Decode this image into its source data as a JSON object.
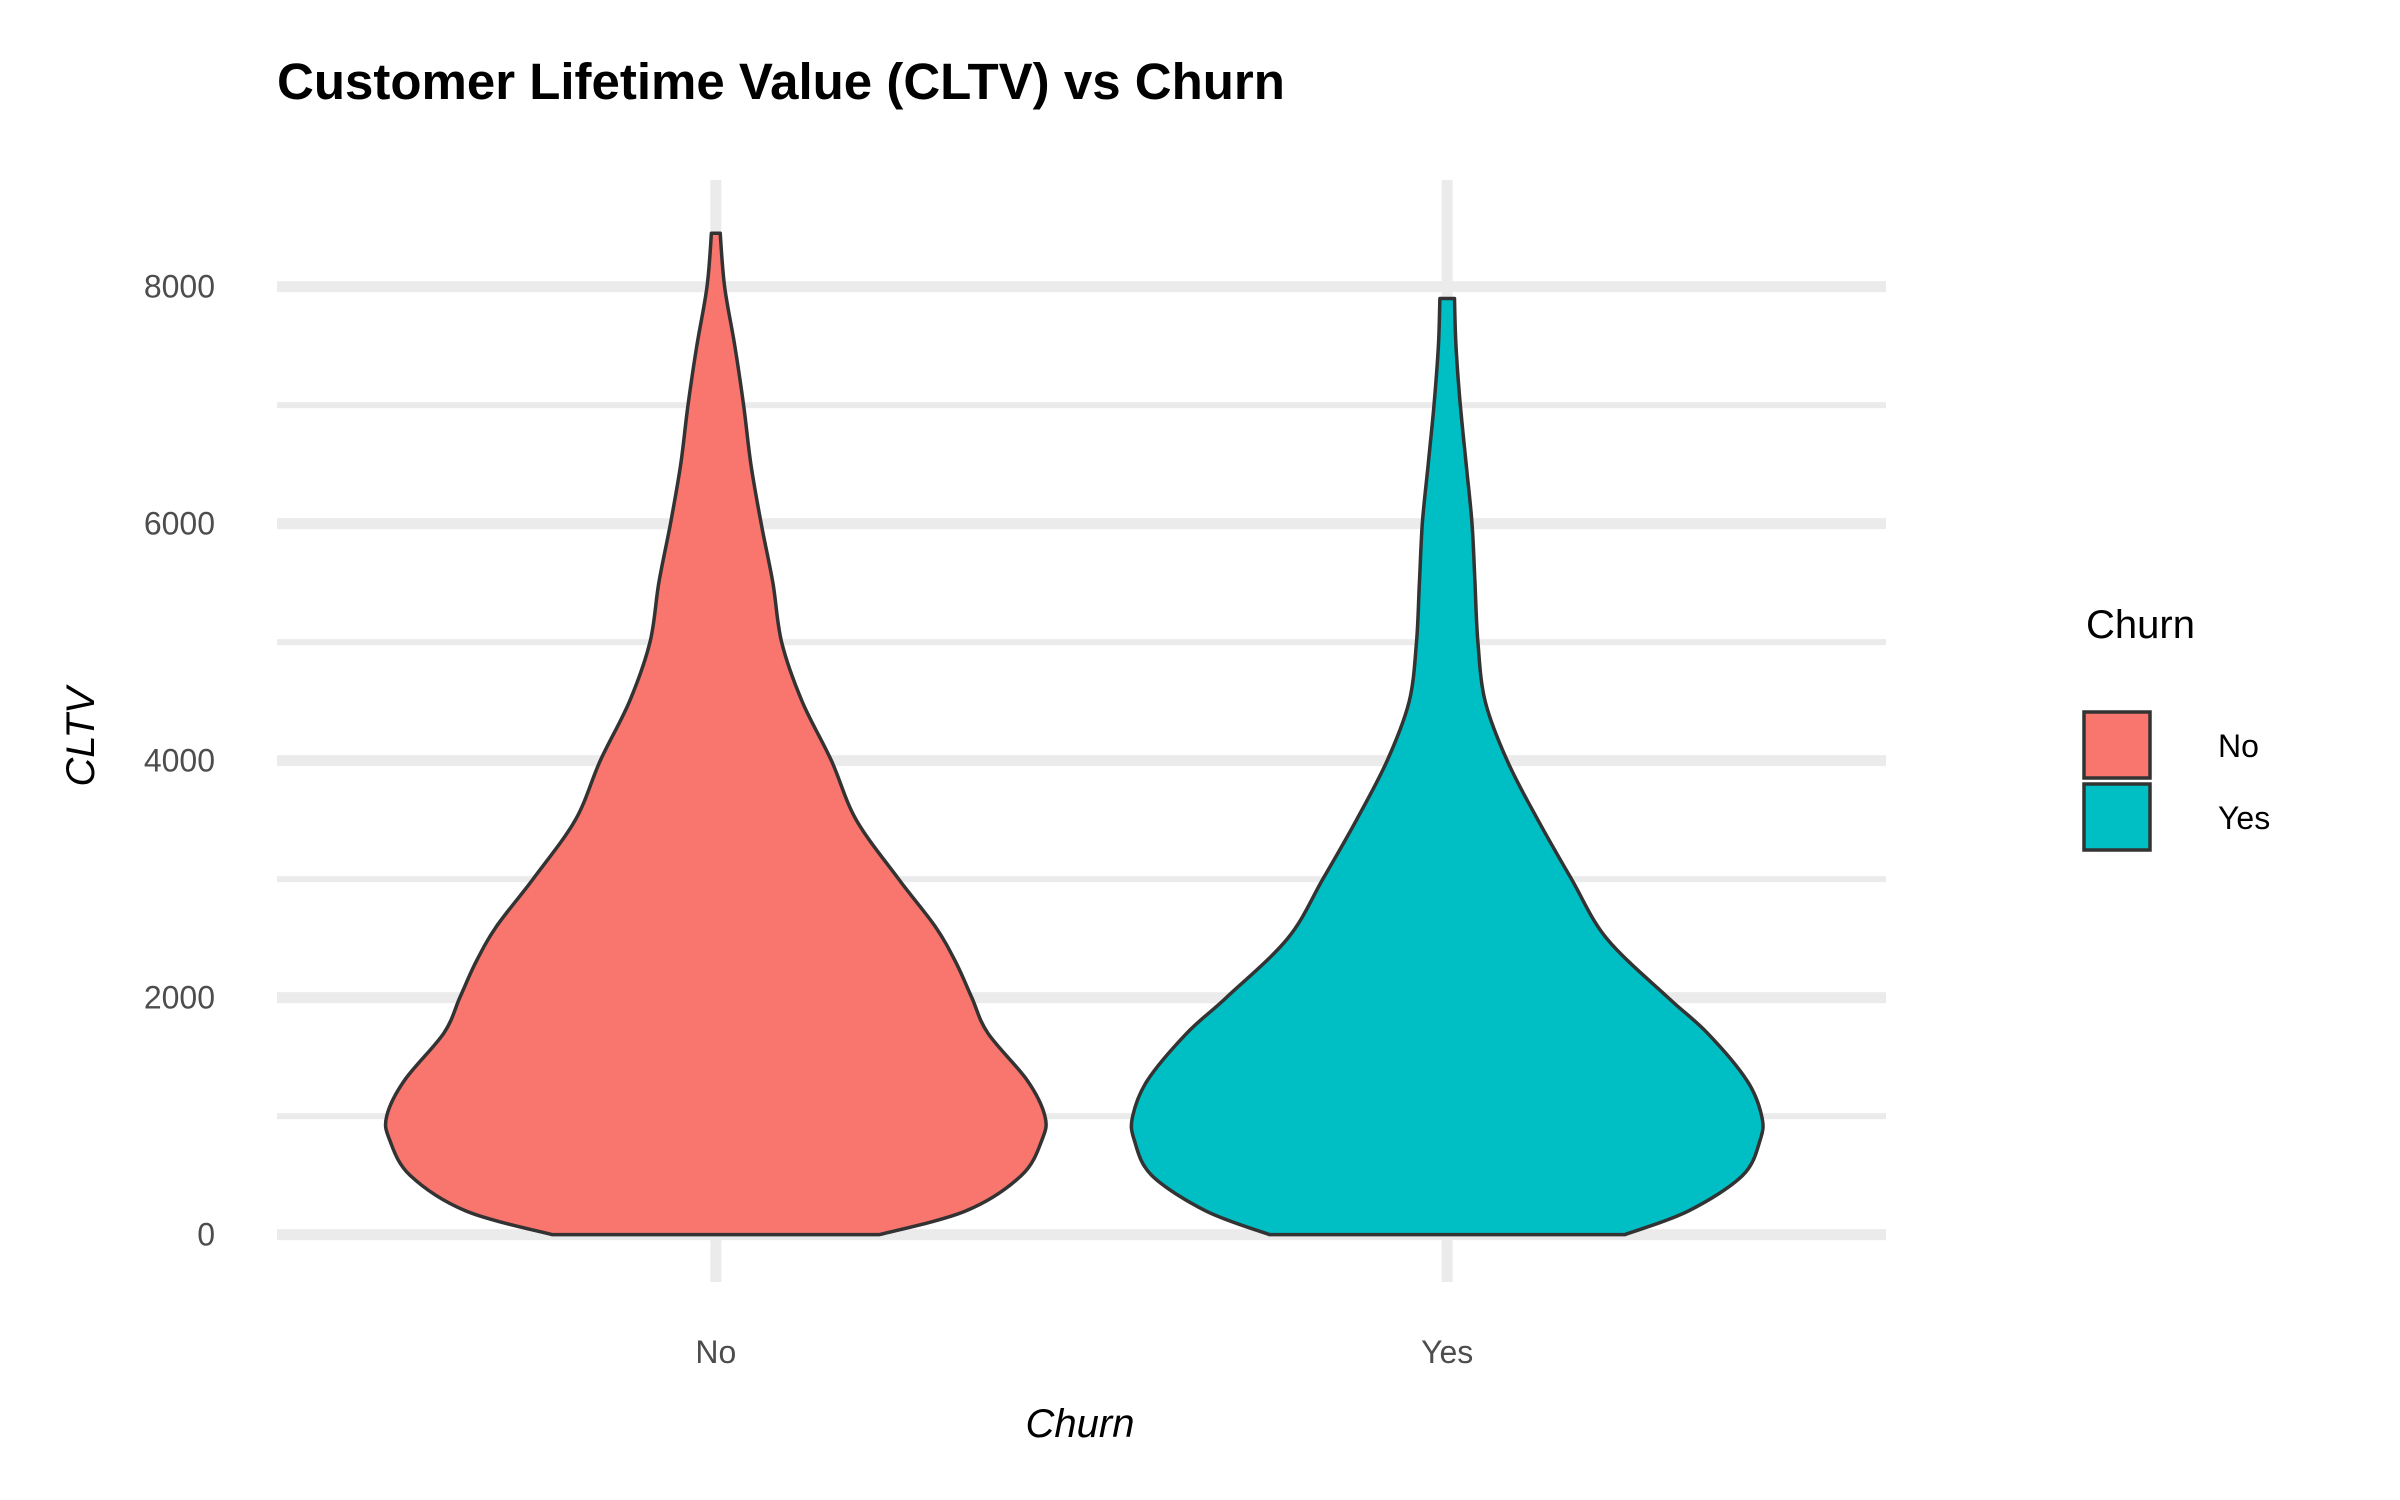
{
  "chart_data": {
    "type": "violin",
    "title": "Customer Lifetime Value (CLTV) vs Churn",
    "xlabel": "Churn",
    "ylabel": "CLTV",
    "categories": [
      "No",
      "Yes"
    ],
    "ylim": [
      -400,
      8900
    ],
    "yticks": [
      0,
      2000,
      4000,
      6000,
      8000
    ],
    "grid": true,
    "legend": {
      "title": "Churn",
      "position": "right",
      "entries": [
        {
          "label": "No",
          "color": "#F8766D"
        },
        {
          "label": "Yes",
          "color": "#00BFC4"
        }
      ]
    },
    "series": [
      {
        "name": "No",
        "color": "#F8766D",
        "max_value": 8450,
        "density_profile": [
          {
            "y": 0,
            "half_width": 0.224
          },
          {
            "y": 200,
            "half_width": 0.342
          },
          {
            "y": 500,
            "half_width": 0.418
          },
          {
            "y": 800,
            "half_width": 0.446
          },
          {
            "y": 1000,
            "half_width": 0.45
          },
          {
            "y": 1300,
            "half_width": 0.426
          },
          {
            "y": 1700,
            "half_width": 0.372
          },
          {
            "y": 2000,
            "half_width": 0.35
          },
          {
            "y": 2300,
            "half_width": 0.328
          },
          {
            "y": 2600,
            "half_width": 0.3
          },
          {
            "y": 3000,
            "half_width": 0.25
          },
          {
            "y": 3500,
            "half_width": 0.192
          },
          {
            "y": 4000,
            "half_width": 0.158
          },
          {
            "y": 4500,
            "half_width": 0.118
          },
          {
            "y": 5000,
            "half_width": 0.09
          },
          {
            "y": 5500,
            "half_width": 0.078
          },
          {
            "y": 6000,
            "half_width": 0.062
          },
          {
            "y": 6500,
            "half_width": 0.048
          },
          {
            "y": 7000,
            "half_width": 0.038
          },
          {
            "y": 7500,
            "half_width": 0.026
          },
          {
            "y": 8000,
            "half_width": 0.012
          },
          {
            "y": 8450,
            "half_width": 0.006
          }
        ]
      },
      {
        "name": "Yes",
        "color": "#00BFC4",
        "max_value": 7900,
        "density_profile": [
          {
            "y": 0,
            "half_width": 0.243
          },
          {
            "y": 200,
            "half_width": 0.33
          },
          {
            "y": 500,
            "half_width": 0.404
          },
          {
            "y": 800,
            "half_width": 0.428
          },
          {
            "y": 1000,
            "half_width": 0.43
          },
          {
            "y": 1300,
            "half_width": 0.41
          },
          {
            "y": 1700,
            "half_width": 0.356
          },
          {
            "y": 2000,
            "half_width": 0.302
          },
          {
            "y": 2500,
            "half_width": 0.218
          },
          {
            "y": 3000,
            "half_width": 0.17
          },
          {
            "y": 3500,
            "half_width": 0.124
          },
          {
            "y": 4000,
            "half_width": 0.082
          },
          {
            "y": 4500,
            "half_width": 0.052
          },
          {
            "y": 5000,
            "half_width": 0.042
          },
          {
            "y": 5500,
            "half_width": 0.038
          },
          {
            "y": 6000,
            "half_width": 0.034
          },
          {
            "y": 6500,
            "half_width": 0.026
          },
          {
            "y": 7000,
            "half_width": 0.018
          },
          {
            "y": 7500,
            "half_width": 0.012
          },
          {
            "y": 7900,
            "half_width": 0.01
          }
        ]
      }
    ]
  }
}
